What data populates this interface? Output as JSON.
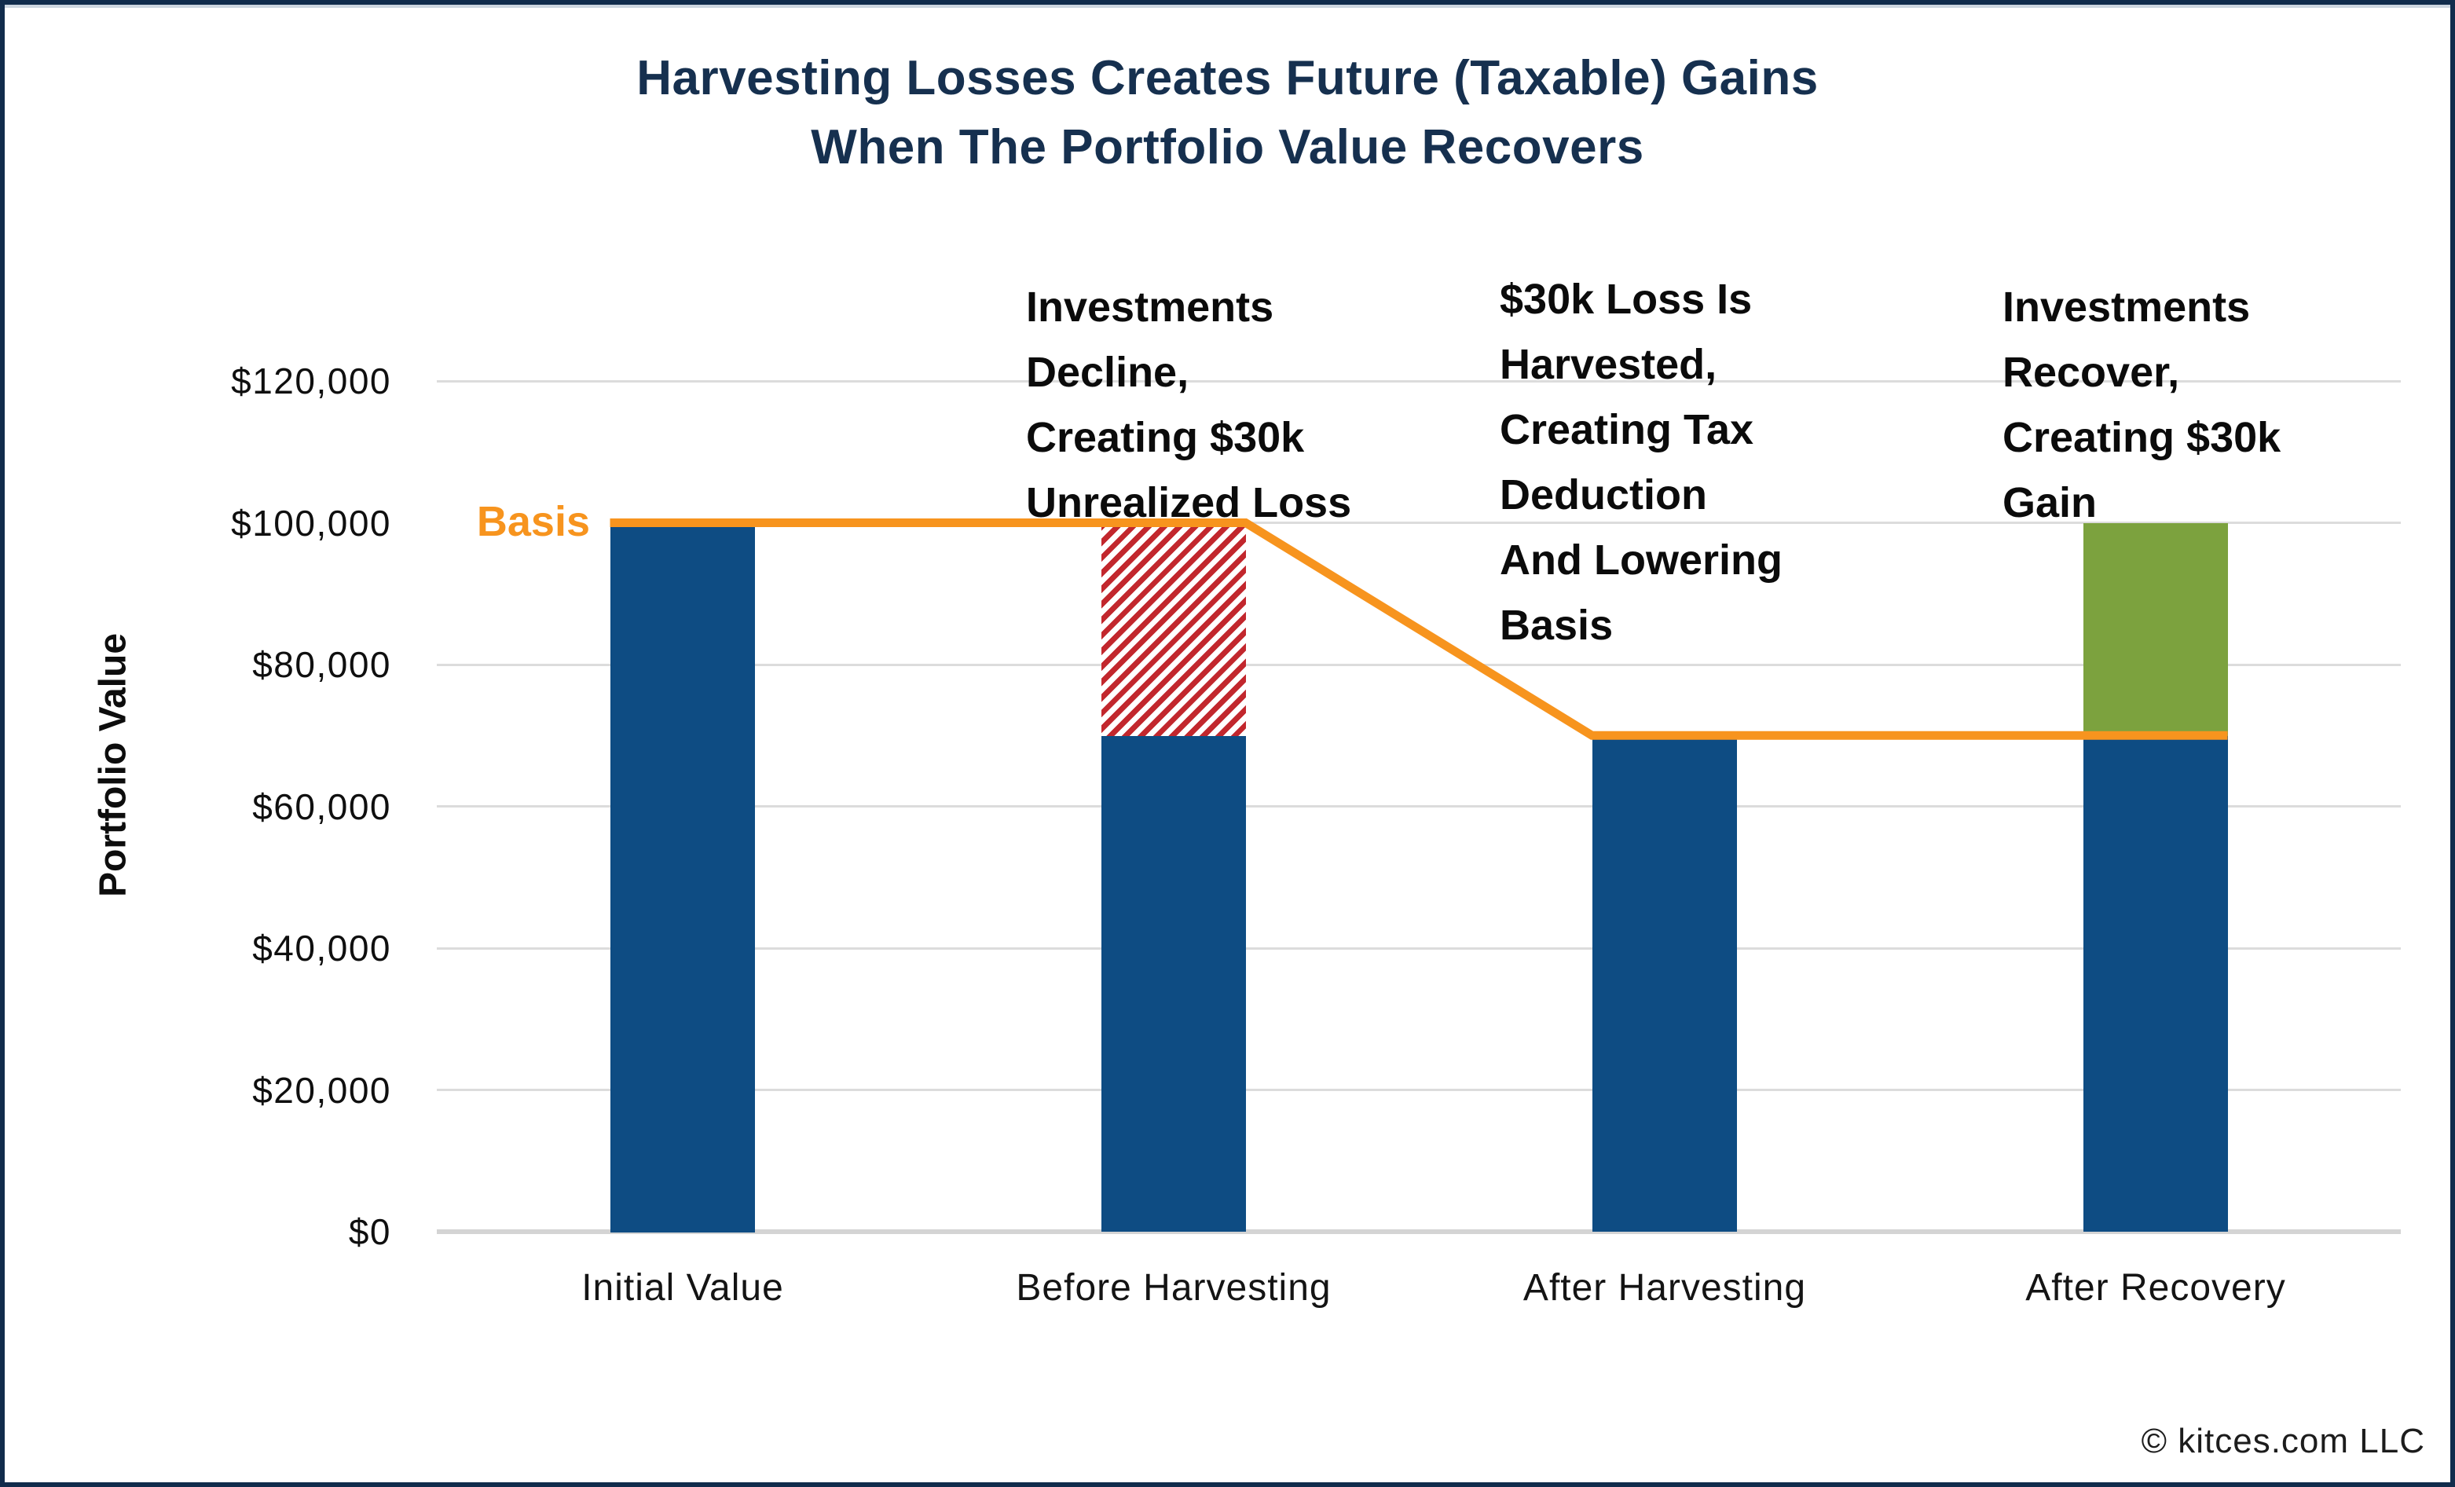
{
  "title": {
    "line1": "Harvesting Losses Creates Future (Taxable) Gains",
    "line2": "When The Portfolio Value Recovers"
  },
  "y_axis": {
    "label": "Portfolio Value",
    "ticks": [
      "$120,000",
      "$100,000",
      "$80,000",
      "$60,000",
      "$40,000",
      "$20,000",
      "$0"
    ]
  },
  "basis_label": "Basis",
  "annotations": [
    {
      "text": "Investments\nDecline,\nCreating $30k\nUnrealized Loss"
    },
    {
      "text": "$30k Loss Is\nHarvested,\nCreating Tax\nDeduction\nAnd Lowering\nBasis"
    },
    {
      "text": "Investments\nRecover,\nCreating $30k\nGain"
    }
  ],
  "footer": {
    "copyright": "© kitces.com LLC"
  },
  "colors": {
    "bar_blue": "#0E4C83",
    "gain_green": "#7CA23E",
    "loss_red": "#C2272D",
    "basis_orange": "#F7941E",
    "title_navy": "#16304F",
    "grid_gray": "#DCDCDC"
  },
  "chart_data": {
    "type": "bar",
    "categories": [
      "Initial Value",
      "Before Harvesting",
      "After Harvesting",
      "After Recovery"
    ],
    "series": [
      {
        "name": "Portfolio Value (blue)",
        "values": [
          100000,
          70000,
          70000,
          70000
        ]
      },
      {
        "name": "Unrealized Loss (red hatch overlay)",
        "values": [
          0,
          30000,
          0,
          0
        ]
      },
      {
        "name": "Recovered Gain (green overlay)",
        "values": [
          0,
          0,
          0,
          30000
        ]
      }
    ],
    "basis_line": {
      "name": "Basis",
      "values": [
        100000,
        100000,
        70000,
        70000
      ]
    },
    "title": "Harvesting Losses Creates Future (Taxable) Gains When The Portfolio Value Recovers",
    "xlabel": "",
    "ylabel": "Portfolio Value",
    "ylim": [
      0,
      120000
    ],
    "ytick_step": 20000,
    "grid": true,
    "legend_position": "none"
  }
}
